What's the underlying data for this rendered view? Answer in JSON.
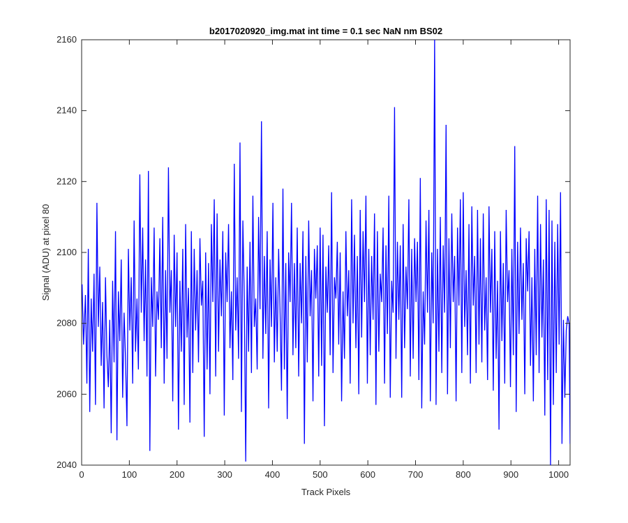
{
  "chart_data": {
    "type": "line",
    "title": "b2017020920_img.mat int time = 0.1 sec  NaN nm BS02",
    "xlabel": "Track Pixels",
    "ylabel": "Signal (ADU) at pixel 80",
    "xlim": [
      0,
      1024
    ],
    "ylim": [
      2040,
      2160
    ],
    "xticks": [
      0,
      100,
      200,
      300,
      400,
      500,
      600,
      700,
      800,
      900,
      1000
    ],
    "yticks": [
      2040,
      2060,
      2080,
      2100,
      2120,
      2140,
      2160
    ],
    "grid": false,
    "series": [
      {
        "color": "#0000ff",
        "note_values": "Noisy signal of 1024 samples fluctuating roughly between 2040 and 2160 ADU; sampled approximately below",
        "x": [
          1,
          4,
          8,
          11,
          14,
          17,
          20,
          23,
          26,
          29,
          32,
          35,
          38,
          41,
          44,
          47,
          50,
          53,
          56,
          59,
          62,
          65,
          68,
          71,
          74,
          77,
          80,
          83,
          86,
          89,
          92,
          95,
          98,
          101,
          104,
          107,
          110,
          113,
          116,
          119,
          122,
          125,
          128,
          131,
          134,
          137,
          140,
          143,
          146,
          149,
          152,
          155,
          158,
          161,
          164,
          167,
          170,
          173,
          176,
          179,
          182,
          185,
          188,
          191,
          194,
          197,
          200,
          203,
          206,
          209,
          212,
          215,
          218,
          221,
          224,
          227,
          230,
          233,
          236,
          239,
          242,
          245,
          248,
          251,
          254,
          257,
          260,
          263,
          266,
          269,
          272,
          275,
          278,
          281,
          284,
          287,
          290,
          293,
          296,
          299,
          302,
          305,
          308,
          311,
          314,
          317,
          320,
          323,
          326,
          329,
          332,
          335,
          338,
          341,
          344,
          347,
          350,
          353,
          356,
          359,
          362,
          365,
          368,
          371,
          374,
          377,
          380,
          383,
          386,
          389,
          392,
          395,
          398,
          401,
          404,
          407,
          410,
          413,
          416,
          419,
          422,
          425,
          428,
          431,
          434,
          437,
          440,
          443,
          446,
          449,
          452,
          455,
          458,
          461,
          464,
          467,
          470,
          473,
          476,
          479,
          482,
          485,
          488,
          491,
          494,
          497,
          500,
          503,
          506,
          509,
          512,
          515,
          518,
          521,
          524,
          527,
          530,
          533,
          536,
          539,
          542,
          545,
          548,
          551,
          554,
          557,
          560,
          563,
          566,
          569,
          572,
          575,
          578,
          581,
          584,
          587,
          590,
          593,
          596,
          599,
          602,
          605,
          608,
          611,
          614,
          617,
          620,
          623,
          626,
          629,
          632,
          635,
          638,
          641,
          644,
          647,
          650,
          653,
          656,
          659,
          662,
          665,
          668,
          671,
          674,
          677,
          680,
          683,
          686,
          689,
          692,
          695,
          698,
          701,
          704,
          707,
          710,
          713,
          716,
          719,
          722,
          725,
          728,
          731,
          734,
          737,
          740,
          743,
          746,
          749,
          752,
          755,
          758,
          761,
          764,
          767,
          770,
          773,
          776,
          779,
          782,
          785,
          788,
          791,
          794,
          797,
          800,
          803,
          806,
          809,
          812,
          815,
          818,
          821,
          824,
          827,
          830,
          833,
          836,
          839,
          842,
          845,
          848,
          851,
          854,
          857,
          860,
          863,
          866,
          869,
          872,
          875,
          878,
          881,
          884,
          887,
          890,
          893,
          896,
          899,
          902,
          905,
          908,
          911,
          914,
          917,
          920,
          923,
          926,
          929,
          932,
          935,
          938,
          941,
          944,
          947,
          950,
          953,
          956,
          959,
          962,
          965,
          968,
          971,
          974,
          977,
          980,
          983,
          986,
          989,
          992,
          995,
          998,
          1001,
          1004,
          1007,
          1010,
          1013,
          1016,
          1019,
          1022,
          1024
        ],
        "values": [
          2091,
          2074,
          2088,
          2063,
          2101,
          2055,
          2087,
          2072,
          2094,
          2057,
          2114,
          2079,
          2096,
          2068,
          2086,
          2056,
          2093,
          2071,
          2062,
          2081,
          2049,
          2092,
          2069,
          2106,
          2047,
          2089,
          2075,
          2098,
          2059,
          2083,
          2070,
          2051,
          2101,
          2078,
          2093,
          2063,
          2109,
          2072,
          2087,
          2067,
          2122,
          2083,
          2107,
          2075,
          2098,
          2065,
          2123,
          2044,
          2093,
          2079,
          2107,
          2065,
          2089,
          2081,
          2104,
          2073,
          2110,
          2063,
          2095,
          2070,
          2124,
          2083,
          2095,
          2058,
          2105,
          2079,
          2100,
          2050,
          2092,
          2072,
          2101,
          2057,
          2108,
          2076,
          2090,
          2052,
          2106,
          2066,
          2101,
          2078,
          2095,
          2069,
          2104,
          2085,
          2092,
          2048,
          2100,
          2067,
          2097,
          2060,
          2108,
          2086,
          2115,
          2065,
          2111,
          2072,
          2098,
          2082,
          2106,
          2054,
          2100,
          2086,
          2108,
          2073,
          2089,
          2064,
          2125,
          2078,
          2093,
          2070,
          2131,
          2055,
          2109,
          2087,
          2041,
          2096,
          2072,
          2103,
          2066,
          2116,
          2079,
          2087,
          2067,
          2110,
          2084,
          2137,
          2070,
          2099,
          2077,
          2106,
          2056,
          2098,
          2079,
          2114,
          2069,
          2093,
          2072,
          2101,
          2083,
          2061,
          2118,
          2067,
          2097,
          2053,
          2100,
          2086,
          2114,
          2071,
          2097,
          2073,
          2107,
          2065,
          2097,
          2080,
          2106,
          2046,
          2099,
          2069,
          2109,
          2082,
          2095,
          2058,
          2101,
          2087,
          2102,
          2065,
          2107,
          2068,
          2105,
          2051,
          2096,
          2083,
          2102,
          2071,
          2117,
          2066,
          2093,
          2087,
          2103,
          2074,
          2100,
          2058,
          2089,
          2070,
          2106,
          2082,
          2095,
          2063,
          2115,
          2080,
          2105,
          2073,
          2099,
          2060,
          2112,
          2076,
          2106,
          2086,
          2116,
          2063,
          2101,
          2071,
          2099,
          2081,
          2111,
          2057,
          2106,
          2072,
          2094,
          2086,
          2107,
          2063,
          2102,
          2077,
          2116,
          2059,
          2092,
          2083,
          2141,
          2070,
          2103,
          2081,
          2102,
          2059,
          2108,
          2073,
          2096,
          2084,
          2115,
          2065,
          2101,
          2070,
          2104,
          2086,
          2103,
          2064,
          2121,
          2056,
          2089,
          2074,
          2109,
          2083,
          2112,
          2058,
          2100,
          2080,
          2160,
          2057,
          2101,
          2072,
          2110,
          2066,
          2102,
          2083,
          2136,
          2060,
          2104,
          2073,
          2111,
          2086,
          2099,
          2058,
          2107,
          2085,
          2115,
          2066,
          2117,
          2079,
          2095,
          2071,
          2108,
          2063,
          2113,
          2085,
          2099,
          2066,
          2112,
          2074,
          2104,
          2069,
          2111,
          2078,
          2093,
          2064,
          2113,
          2083,
          2101,
          2061,
          2106,
          2070,
          2092,
          2050,
          2106,
          2075,
          2097,
          2063,
          2112,
          2086,
          2095,
          2062,
          2101,
          2071,
          2130,
          2055,
          2103,
          2077,
          2107,
          2081,
          2097,
          2060,
          2104,
          2089,
          2106,
          2068,
          2093,
          2058,
          2101,
          2071,
          2116,
          2066,
          2108,
          2076,
          2098,
          2054,
          2115,
          2064,
          2112,
          2040,
          2109,
          2057,
          2103,
          2066,
          2108,
          2074,
          2117,
          2046,
          2081,
          2059,
          2078,
          2082,
          2080,
          2046
        ]
      }
    ]
  }
}
